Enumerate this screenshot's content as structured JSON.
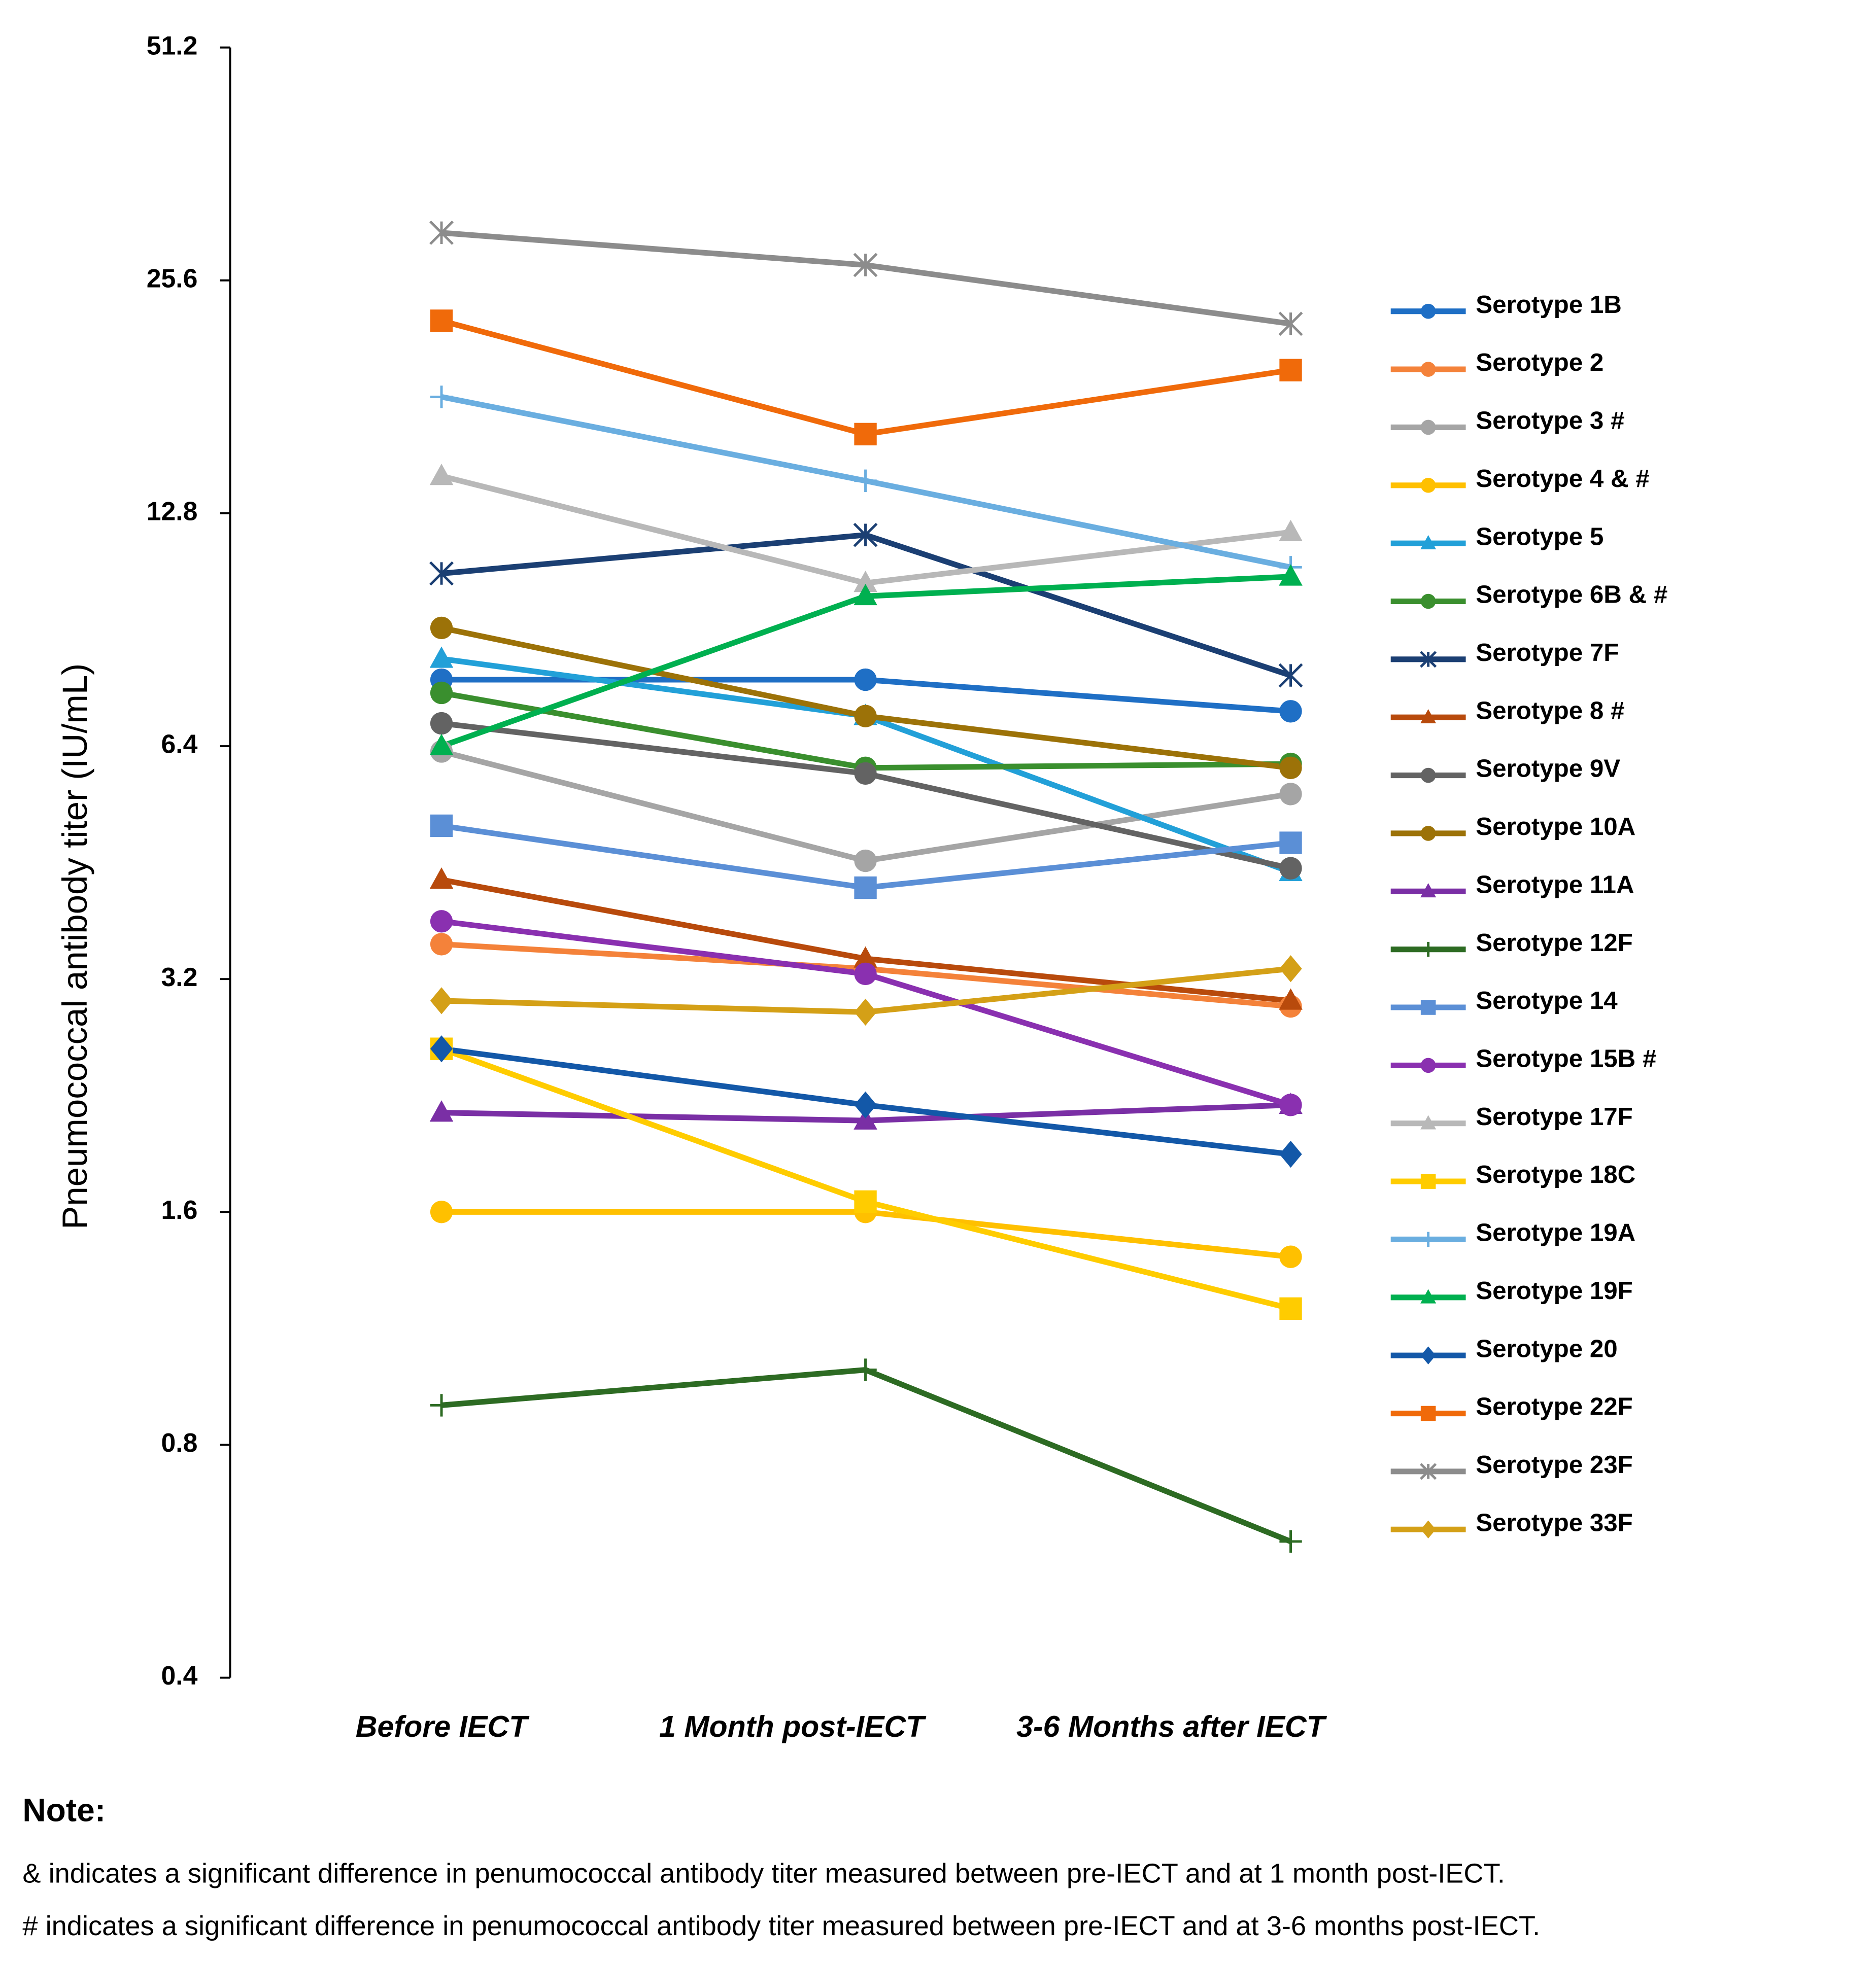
{
  "chart_data": {
    "type": "line",
    "y_label": "Pneumococcal antibody titer (IU/mL)",
    "categories": [
      "Before IECT",
      "1 Month post-IECT",
      "3-6 Months after IECT"
    ],
    "ylim": [
      0.4,
      51.2
    ],
    "yticks": [
      0.4,
      0.8,
      1.6,
      3.2,
      6.4,
      12.8,
      25.6,
      51.2
    ],
    "log_base": 2,
    "grid": false,
    "legend": "right",
    "series": [
      {
        "name": "Serotype 1B",
        "color": "#1f6fc5",
        "marker": "circle",
        "values": [
          7.8,
          7.8,
          7.1
        ]
      },
      {
        "name": "Serotype 2",
        "color": "#f4823a",
        "marker": "circle",
        "values": [
          3.55,
          3.3,
          2.95
        ]
      },
      {
        "name": "Serotype 3 #",
        "color": "#a5a5a5",
        "marker": "circle",
        "values": [
          6.3,
          4.55,
          5.55
        ]
      },
      {
        "name": "Serotype 4 & #",
        "color": "#ffc000",
        "marker": "circle",
        "values": [
          1.6,
          1.6,
          1.4
        ]
      },
      {
        "name": "Serotype 5",
        "color": "#22a0d8",
        "marker": "triangle",
        "values": [
          8.3,
          7.0,
          4.4
        ]
      },
      {
        "name": "Serotype 6B  & #",
        "color": "#3a8f2e",
        "marker": "circle",
        "values": [
          7.5,
          6.0,
          6.07
        ]
      },
      {
        "name": "Serotype 7F",
        "color": "#1b3f73",
        "marker": "star",
        "values": [
          10.7,
          12.0,
          7.9
        ]
      },
      {
        "name": "Serotype 8 #",
        "color": "#b84a0c",
        "marker": "triangle",
        "values": [
          4.3,
          3.4,
          3.0
        ]
      },
      {
        "name": "Serotype 9V",
        "color": "#636363",
        "marker": "circle",
        "values": [
          6.85,
          5.9,
          4.45
        ]
      },
      {
        "name": "Serotype 10A",
        "color": "#9c7208",
        "marker": "circle",
        "values": [
          9.1,
          7.0,
          6.0
        ]
      },
      {
        "name": "Serotype 11A",
        "color": "#7a2fa5",
        "marker": "triangle",
        "values": [
          2.15,
          2.1,
          2.2
        ]
      },
      {
        "name": "Serotype 12F",
        "color": "#2d6b23",
        "marker": "plus",
        "values": [
          0.9,
          1.0,
          0.6
        ]
      },
      {
        "name": "Serotype 14",
        "color": "#5b8fd6",
        "marker": "square",
        "values": [
          5.05,
          4.2,
          4.8
        ]
      },
      {
        "name": "Serotype 15B #",
        "color": "#8a30b0",
        "marker": "circle",
        "values": [
          3.8,
          3.25,
          2.2
        ]
      },
      {
        "name": "Serotype 17F",
        "color": "#b8b8b8",
        "marker": "triangle",
        "values": [
          14.3,
          10.4,
          12.1
        ]
      },
      {
        "name": "Serotype 18C",
        "color": "#ffcc00",
        "marker": "square",
        "values": [
          2.6,
          1.65,
          1.2
        ]
      },
      {
        "name": "Serotype 19A",
        "color": "#6aaee0",
        "marker": "plus",
        "values": [
          18.1,
          14.1,
          10.9
        ]
      },
      {
        "name": "Serotype 19F",
        "color": "#00b050",
        "marker": "triangle",
        "values": [
          6.4,
          10.0,
          10.6
        ]
      },
      {
        "name": "Serotype 20",
        "color": "#1358a8",
        "marker": "diamond",
        "values": [
          2.6,
          2.2,
          1.9
        ]
      },
      {
        "name": "Serotype 22F",
        "color": "#f06a0a",
        "marker": "square",
        "values": [
          22.7,
          16.2,
          19.6
        ]
      },
      {
        "name": "Serotype 23F",
        "color": "#8c8c8c",
        "marker": "star",
        "values": [
          29.5,
          26.8,
          22.5
        ]
      },
      {
        "name": "Serotype 33F",
        "color": "#d4a017",
        "marker": "diamond",
        "values": [
          3.0,
          2.9,
          3.3
        ]
      }
    ],
    "note_title": "Note:",
    "notes": [
      "& indicates a significant difference in penumococcal antibody titer measured between pre-IECT and at 1 month post-IECT.",
      "# indicates a significant difference in penumococcal antibody titer measured between pre-IECT and at 3-6 months post-IECT."
    ]
  }
}
